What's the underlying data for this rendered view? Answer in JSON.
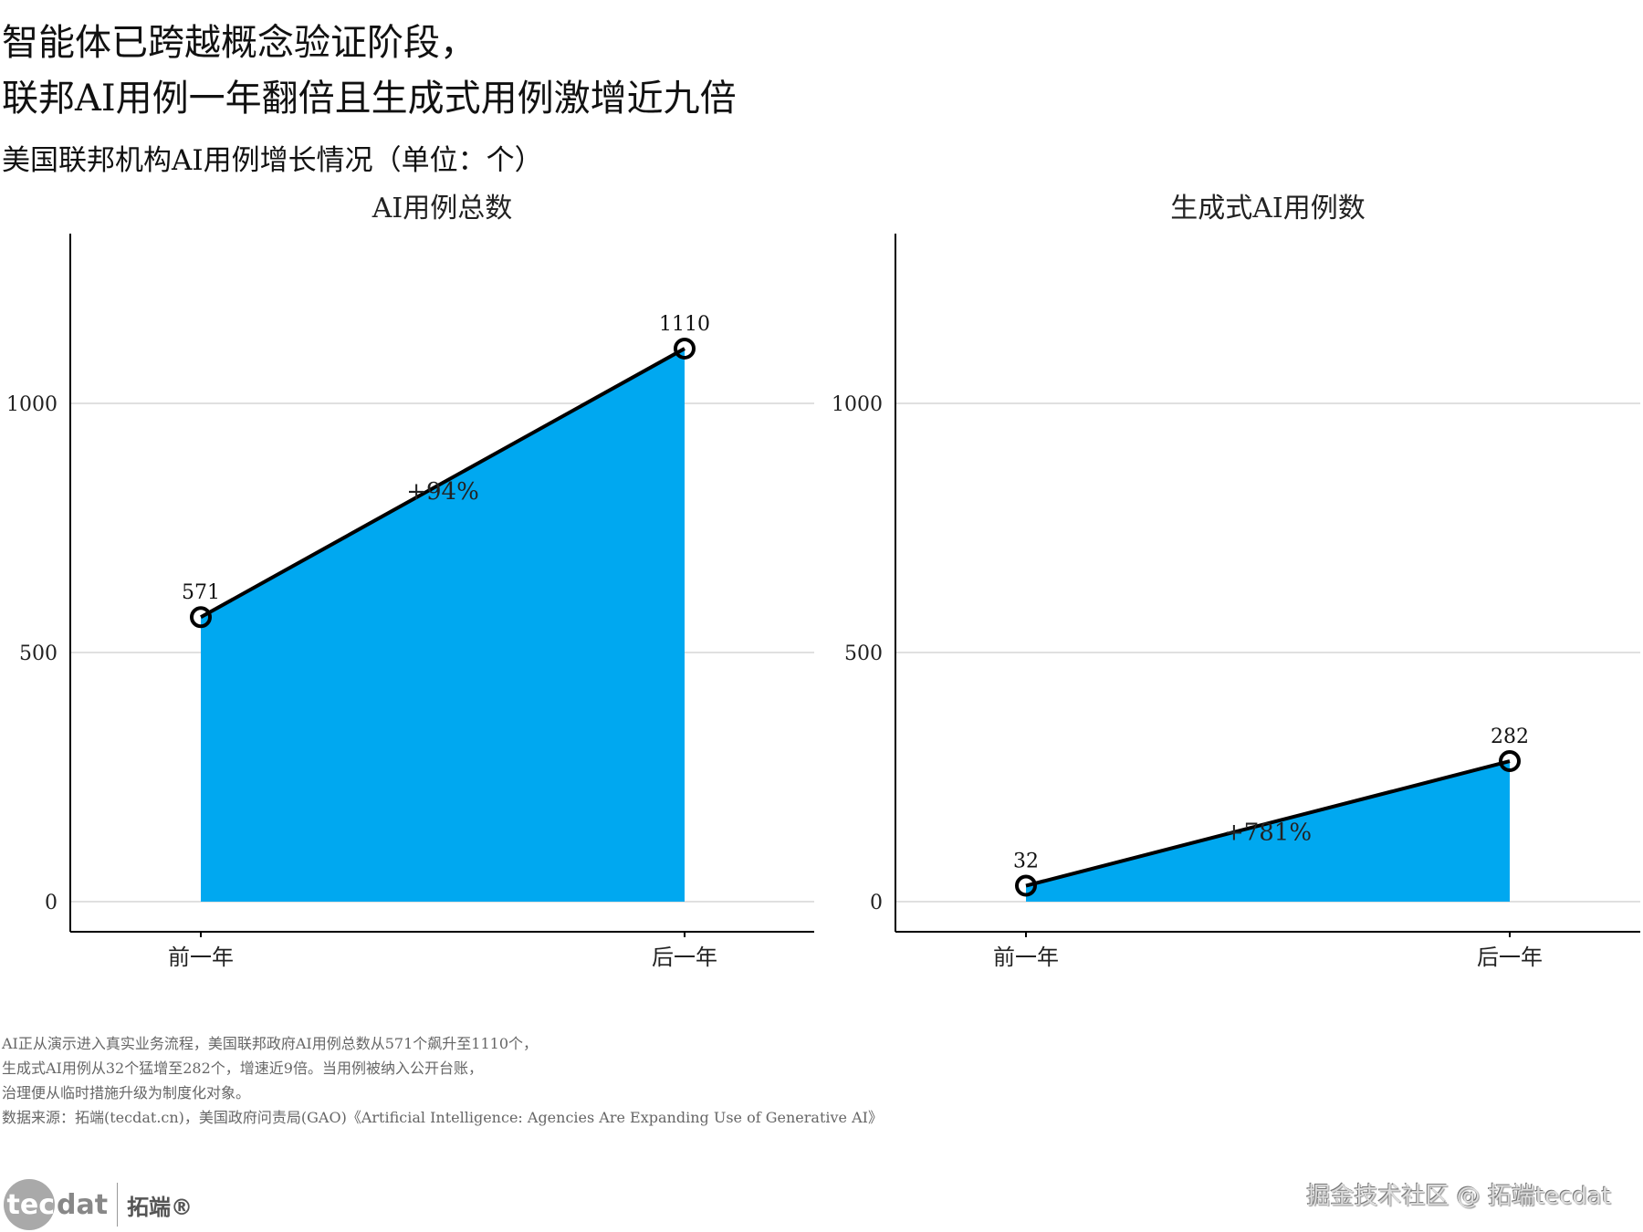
{
  "title_lines": [
    "智能体已跨越概念验证阶段，",
    "联邦AI用例一年翻倍且生成式用例激增近九倍"
  ],
  "subtitle": "美国联邦机构AI用例增长情况（单位：个）",
  "colors": {
    "fill": "#00A8F0",
    "line": "#000000",
    "grid": "#e0e0e0"
  },
  "chart_data": [
    {
      "type": "area",
      "title": "AI用例总数",
      "categories": [
        "前一年",
        "后一年"
      ],
      "values": [
        571,
        1110
      ],
      "value_labels": [
        "571",
        "1110"
      ],
      "change_label": "+94%",
      "ylim": [
        0,
        1250
      ],
      "yticks": [
        0,
        500,
        1000
      ],
      "ytick_labels": [
        "0",
        "500",
        "1000"
      ],
      "grid": true
    },
    {
      "type": "area",
      "title": "生成式AI用例数",
      "categories": [
        "前一年",
        "后一年"
      ],
      "values": [
        32,
        282
      ],
      "value_labels": [
        "32",
        "282"
      ],
      "change_label": "+781%",
      "ylim": [
        0,
        1250
      ],
      "yticks": [
        0,
        500,
        1000
      ],
      "ytick_labels": [
        "0",
        "500",
        "1000"
      ],
      "grid": true
    }
  ],
  "notes": [
    "AI正从演示进入真实业务流程，美国联邦政府AI用例总数从571个飙升至1110个，",
    "生成式AI用例从32个猛增至282个，增速近9倍。当用例被纳入公开台账，",
    "治理便从临时措施升级为制度化对象。",
    "数据来源：拓端(tecdat.cn)，美国政府问责局(GAO)《Artificial Intelligence: Agencies Are Expanding Use of Generative AI》"
  ],
  "logo": {
    "circle_text": "tec",
    "rest_text": "dat",
    "cn_text": "拓端®"
  },
  "watermark": "掘金技术社区 @ 拓端tecdat"
}
